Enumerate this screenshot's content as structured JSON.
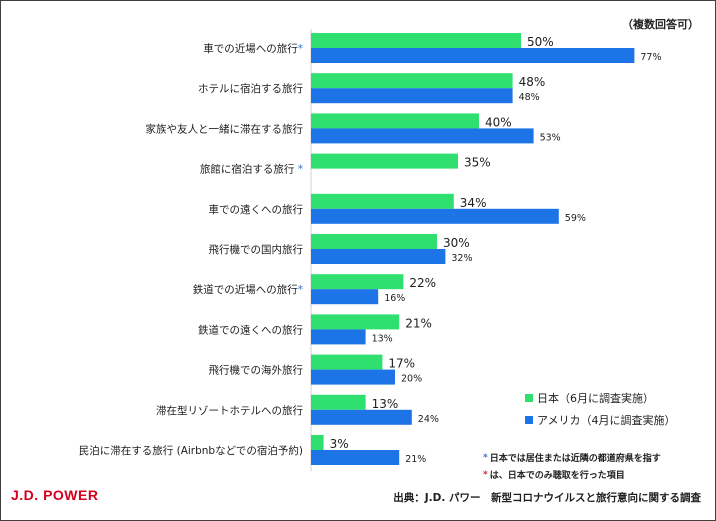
{
  "note": "（複数回答可）",
  "chart_data": {
    "type": "bar",
    "orientation": "horizontal",
    "categories": [
      "車での近場への旅行",
      "ホテルに宿泊する旅行",
      "家族や友人と一緒に滞在する旅行",
      "旅館に宿泊する旅行",
      "車での遠くへの旅行",
      "飛行機での国内旅行",
      "鉄道での近場への旅行",
      "鉄道での遠くへの旅行",
      "飛行機での海外旅行",
      "滞在型リゾートホテルへの旅行",
      "民泊に滞在する旅行 (Airbnbなどでの宿泊予約)"
    ],
    "category_marks": [
      "*",
      "",
      "",
      " *",
      "",
      "",
      "*",
      "",
      "",
      "",
      ""
    ],
    "series": [
      {
        "name": "日本（6月に調査実施）",
        "color": "#2fe070",
        "values": [
          50,
          48,
          40,
          35,
          34,
          30,
          22,
          21,
          17,
          13,
          3
        ],
        "labels": [
          "50%",
          "48%",
          "40%",
          "35%",
          "34%",
          "30%",
          "22%",
          "21%",
          "17%",
          "13%",
          "3%"
        ]
      },
      {
        "name": "アメリカ（4月に調査実施）",
        "color": "#1c74e6",
        "values": [
          77,
          48,
          53,
          null,
          59,
          32,
          16,
          13,
          20,
          24,
          21
        ],
        "labels": [
          "77%",
          "48%",
          "53%",
          "",
          "59%",
          "32%",
          "16%",
          "13%",
          "20%",
          "24%",
          "21%"
        ]
      }
    ],
    "xlim": [
      0,
      100
    ],
    "legend_position": "bottom-right",
    "grid": false
  },
  "footnotes": [
    {
      "mark": "*",
      "text": "日本では居住または近隣の都道府県を指す",
      "color": "#2f6fd6"
    },
    {
      "mark": "*",
      "text": " は、日本でのみ聴取を行った項目",
      "color": "#e0202a"
    }
  ],
  "brand": "J.D. POWER",
  "source": "出典：J.D. パワー　新型コロナウイルスと旅行意向に関する調査"
}
